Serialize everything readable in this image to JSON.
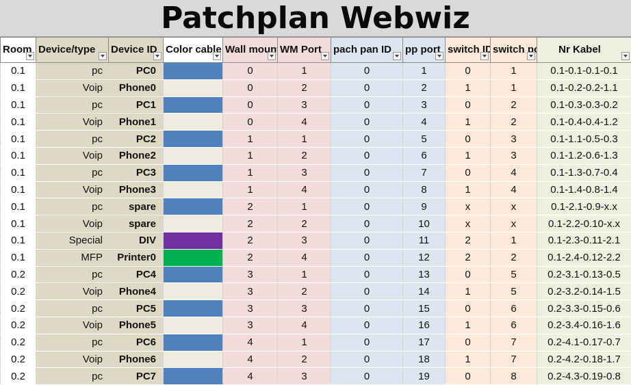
{
  "title": "Patchplan Webwiz",
  "headers": [
    "Room",
    "Device/type",
    "Device ID",
    "Color cable",
    "Wall mount",
    "WM Port",
    "pach pan ID",
    "pp port",
    "switch ID",
    "switch port",
    "Nr Kabel"
  ],
  "colors": {
    "blue": "#4f81bd",
    "cream": "#eeece1",
    "purple": "#7030a0",
    "green": "#00b050"
  },
  "rows": [
    [
      "0.1",
      "pc",
      "PC0",
      "blue",
      "0",
      "1",
      "0",
      "1",
      "0",
      "1",
      "0.1-0.1-0.1-0.1"
    ],
    [
      "0.1",
      "Voip",
      "Phone0",
      "cream",
      "0",
      "2",
      "0",
      "2",
      "1",
      "1",
      "0.1-0.2-0.2-1.1"
    ],
    [
      "0.1",
      "pc",
      "PC1",
      "blue",
      "0",
      "3",
      "0",
      "3",
      "0",
      "2",
      "0.1-0.3-0.3-0.2"
    ],
    [
      "0.1",
      "Voip",
      "Phone1",
      "cream",
      "0",
      "4",
      "0",
      "4",
      "1",
      "2",
      "0.1-0.4-0.4-1.2"
    ],
    [
      "0.1",
      "pc",
      "PC2",
      "blue",
      "1",
      "1",
      "0",
      "5",
      "0",
      "3",
      "0.1-1.1-0.5-0.3"
    ],
    [
      "0.1",
      "Voip",
      "Phone2",
      "cream",
      "1",
      "2",
      "0",
      "6",
      "1",
      "3",
      "0.1-1.2-0.6-1.3"
    ],
    [
      "0.1",
      "pc",
      "PC3",
      "blue",
      "1",
      "3",
      "0",
      "7",
      "0",
      "4",
      "0.1-1.3-0.7-0.4"
    ],
    [
      "0.1",
      "Voip",
      "Phone3",
      "cream",
      "1",
      "4",
      "0",
      "8",
      "1",
      "4",
      "0.1-1.4-0.8-1.4"
    ],
    [
      "0.1",
      "pc",
      "spare",
      "blue",
      "2",
      "1",
      "0",
      "9",
      "x",
      "x",
      "0.1-2.1-0.9-x.x"
    ],
    [
      "0.1",
      "Voip",
      "spare",
      "cream",
      "2",
      "2",
      "0",
      "10",
      "x",
      "x",
      "0.1-2.2-0.10-x.x"
    ],
    [
      "0.1",
      "Special",
      "DIV",
      "purple",
      "2",
      "3",
      "0",
      "11",
      "2",
      "1",
      "0.1-2.3-0.11-2.1"
    ],
    [
      "0.1",
      "MFP",
      "Printer0",
      "green",
      "2",
      "4",
      "0",
      "12",
      "2",
      "2",
      "0.1-2.4-0.12-2.2"
    ],
    [
      "0.2",
      "pc",
      "PC4",
      "blue",
      "3",
      "1",
      "0",
      "13",
      "0",
      "5",
      "0.2-3.1-0.13-0.5"
    ],
    [
      "0.2",
      "Voip",
      "Phone4",
      "cream",
      "3",
      "2",
      "0",
      "14",
      "1",
      "5",
      "0.2-3.2-0.14-1.5"
    ],
    [
      "0.2",
      "pc",
      "PC5",
      "blue",
      "3",
      "3",
      "0",
      "15",
      "0",
      "6",
      "0.2-3.3-0.15-0.6"
    ],
    [
      "0.2",
      "Voip",
      "Phone5",
      "cream",
      "3",
      "4",
      "0",
      "16",
      "1",
      "6",
      "0.2-3.4-0.16-1.6"
    ],
    [
      "0.2",
      "pc",
      "PC6",
      "blue",
      "4",
      "1",
      "0",
      "17",
      "0",
      "7",
      "0.2-4.1-0.17-0.7"
    ],
    [
      "0.2",
      "Voip",
      "Phone6",
      "cream",
      "4",
      "2",
      "0",
      "18",
      "1",
      "7",
      "0.2-4.2-0.18-1.7"
    ],
    [
      "0.2",
      "pc",
      "PC7",
      "blue",
      "4",
      "3",
      "0",
      "19",
      "0",
      "8",
      "0.2-4.3-0.19-0.8"
    ]
  ]
}
